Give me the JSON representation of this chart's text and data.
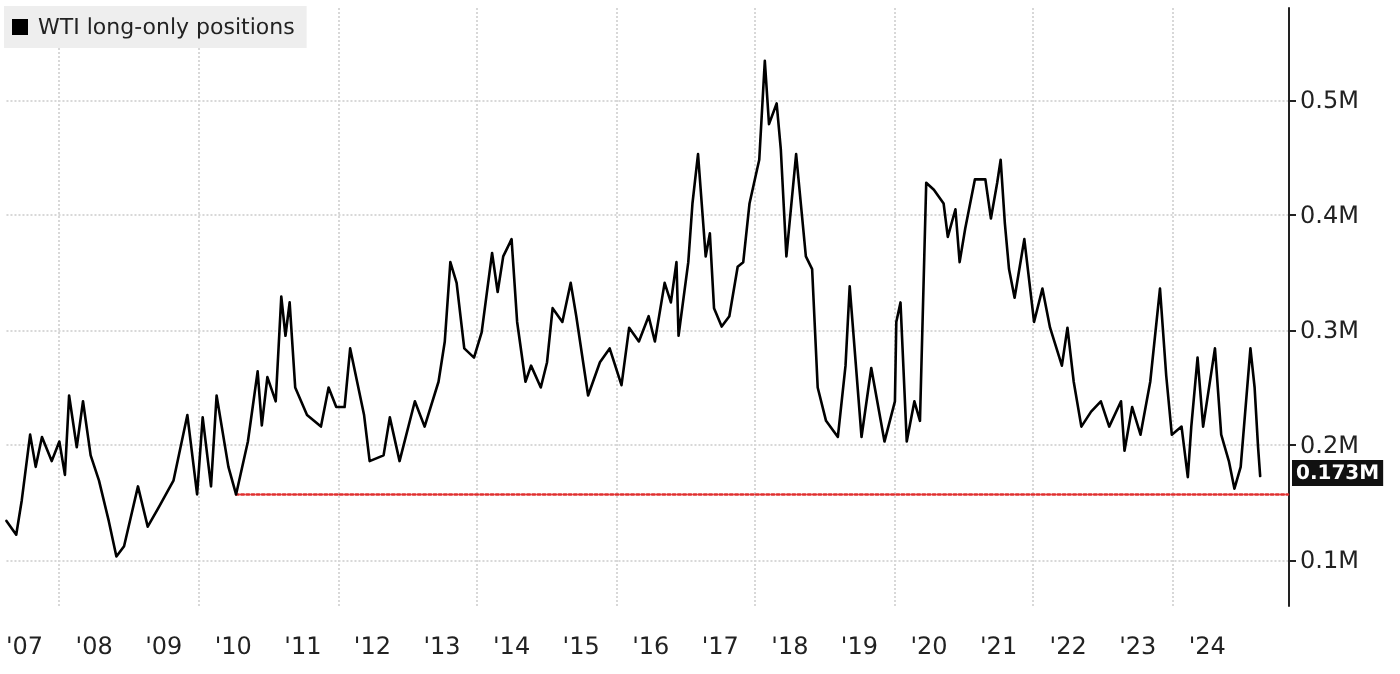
{
  "chart_data": {
    "type": "line",
    "x": [
      2006.74,
      2006.88,
      2006.96,
      2007.08,
      2007.16,
      2007.25,
      2007.39,
      2007.5,
      2007.58,
      2007.64,
      2007.75,
      2007.84,
      2007.95,
      2008.07,
      2008.21,
      2008.32,
      2008.43,
      2008.63,
      2008.77,
      2008.94,
      2009.14,
      2009.34,
      2009.48,
      2009.56,
      2009.68,
      2009.76,
      2009.93,
      2010.04,
      2010.21,
      2010.35,
      2010.41,
      2010.49,
      2010.61,
      2010.69,
      2010.75,
      2010.81,
      2010.89,
      2011.06,
      2011.26,
      2011.37,
      2011.48,
      2011.6,
      2011.68,
      2011.88,
      2011.96,
      2012.16,
      2012.25,
      2012.39,
      2012.61,
      2012.75,
      2012.95,
      2013.04,
      2013.12,
      2013.21,
      2013.32,
      2013.46,
      2013.57,
      2013.72,
      2013.8,
      2013.88,
      2014.0,
      2014.08,
      2014.2,
      2014.28,
      2014.42,
      2014.51,
      2014.59,
      2014.73,
      2014.85,
      2014.93,
      2015.1,
      2015.27,
      2015.41,
      2015.58,
      2015.69,
      2015.83,
      2015.97,
      2016.06,
      2016.2,
      2016.29,
      2016.37,
      2016.4,
      2016.54,
      2016.6,
      2016.68,
      2016.79,
      2016.85,
      2016.91,
      2017.02,
      2017.13,
      2017.25,
      2017.33,
      2017.42,
      2017.53,
      2017.56,
      2017.64,
      2017.7,
      2017.81,
      2017.87,
      2017.95,
      2018.09,
      2018.23,
      2018.32,
      2018.4,
      2018.52,
      2018.69,
      2018.8,
      2018.86,
      2019.03,
      2019.17,
      2019.36,
      2019.51,
      2019.53,
      2019.59,
      2019.68,
      2019.79,
      2019.87,
      2019.96,
      2020.07,
      2020.21,
      2020.27,
      2020.38,
      2020.44,
      2020.52,
      2020.66,
      2020.81,
      2020.89,
      2020.98,
      2021.03,
      2021.09,
      2021.15,
      2021.23,
      2021.37,
      2021.51,
      2021.63,
      2021.74,
      2021.91,
      2021.99,
      2022.08,
      2022.19,
      2022.33,
      2022.47,
      2022.59,
      2022.76,
      2022.81,
      2022.92,
      2023.04,
      2023.18,
      2023.32,
      2023.41,
      2023.49,
      2023.63,
      2023.72,
      2023.77,
      2023.86,
      2023.94,
      2024.11,
      2024.2,
      2024.31,
      2024.39,
      2024.48,
      2024.62,
      2024.68,
      2024.73,
      2024.76
    ],
    "series": [
      {
        "name": "WTI long-only positions",
        "color": "#000000",
        "values": [
          0.134,
          0.122,
          0.152,
          0.209,
          0.181,
          0.207,
          0.186,
          0.203,
          0.174,
          0.243,
          0.198,
          0.238,
          0.191,
          0.169,
          0.134,
          0.103,
          0.112,
          0.164,
          0.129,
          0.147,
          0.169,
          0.226,
          0.157,
          0.224,
          0.164,
          0.243,
          0.181,
          0.157,
          0.203,
          0.264,
          0.217,
          0.259,
          0.238,
          0.329,
          0.295,
          0.324,
          0.25,
          0.226,
          0.216,
          0.25,
          0.233,
          0.233,
          0.284,
          0.226,
          0.186,
          0.191,
          0.224,
          0.186,
          0.238,
          0.216,
          0.255,
          0.29,
          0.359,
          0.341,
          0.284,
          0.276,
          0.298,
          0.367,
          0.333,
          0.364,
          0.379,
          0.307,
          0.255,
          0.269,
          0.25,
          0.272,
          0.319,
          0.307,
          0.341,
          0.312,
          0.243,
          0.272,
          0.284,
          0.252,
          0.302,
          0.29,
          0.312,
          0.29,
          0.341,
          0.324,
          0.359,
          0.295,
          0.359,
          0.41,
          0.453,
          0.364,
          0.384,
          0.319,
          0.303,
          0.312,
          0.355,
          0.359,
          0.41,
          0.44,
          0.448,
          0.534,
          0.479,
          0.497,
          0.457,
          0.364,
          0.453,
          0.364,
          0.353,
          0.25,
          0.221,
          0.207,
          0.269,
          0.338,
          0.207,
          0.267,
          0.203,
          0.238,
          0.307,
          0.324,
          0.203,
          0.238,
          0.221,
          0.428,
          0.422,
          0.41,
          0.381,
          0.405,
          0.359,
          0.388,
          0.431,
          0.431,
          0.397,
          0.428,
          0.448,
          0.393,
          0.353,
          0.328,
          0.379,
          0.307,
          0.336,
          0.302,
          0.269,
          0.302,
          0.255,
          0.216,
          0.229,
          0.238,
          0.216,
          0.238,
          0.195,
          0.233,
          0.209,
          0.255,
          0.336,
          0.26,
          0.209,
          0.216,
          0.172,
          0.216,
          0.276,
          0.216,
          0.284,
          0.209,
          0.186,
          0.162,
          0.181,
          0.284,
          0.25,
          0.198,
          0.173
        ]
      },
      {
        "type": "line",
        "color": "#e03030",
        "line_style": "dotted",
        "x": [
          2010.04,
          2025.16
        ],
        "values": [
          0.157,
          0.157
        ]
      }
    ],
    "xlim": [
      2006.74,
      2025.16
    ],
    "xticks": [
      {
        "value": 2007,
        "label": "'07"
      },
      {
        "value": 2007.5,
        "label": null
      },
      {
        "value": 2008,
        "label": "'08"
      },
      {
        "value": 2009,
        "label": "'09"
      },
      {
        "value": 2009.5,
        "label": null
      },
      {
        "value": 2010,
        "label": "'10"
      },
      {
        "value": 2011,
        "label": "'11"
      },
      {
        "value": 2011.5,
        "label": null
      },
      {
        "value": 2012,
        "label": "'12"
      },
      {
        "value": 2013,
        "label": "'13"
      },
      {
        "value": 2013.5,
        "label": null
      },
      {
        "value": 2014,
        "label": "'14"
      },
      {
        "value": 2015,
        "label": "'15"
      },
      {
        "value": 2015.5,
        "label": null
      },
      {
        "value": 2016,
        "label": "'16"
      },
      {
        "value": 2017,
        "label": "'17"
      },
      {
        "value": 2017.5,
        "label": null
      },
      {
        "value": 2018,
        "label": "'18"
      },
      {
        "value": 2019,
        "label": "'19"
      },
      {
        "value": 2019.5,
        "label": null
      },
      {
        "value": 2020,
        "label": "'20"
      },
      {
        "value": 2021,
        "label": "'21"
      },
      {
        "value": 2021.5,
        "label": null
      },
      {
        "value": 2022,
        "label": "'22"
      },
      {
        "value": 2023,
        "label": "'23"
      },
      {
        "value": 2023.5,
        "label": null
      },
      {
        "value": 2024,
        "label": "'24"
      }
    ],
    "ylim": [
      0.06,
      0.58
    ],
    "yticks": [
      {
        "value": 0.1,
        "label": "0.1M"
      },
      {
        "value": 0.2,
        "label": "0.2M"
      },
      {
        "value": 0.3,
        "label": "0.3M"
      },
      {
        "value": 0.4,
        "label": "0.4M"
      },
      {
        "value": 0.5,
        "label": "0.5M"
      }
    ],
    "annotations": [
      "0.173M"
    ],
    "grid": true,
    "legend": "top left",
    "marker": "none",
    "line_style": "solid"
  }
}
